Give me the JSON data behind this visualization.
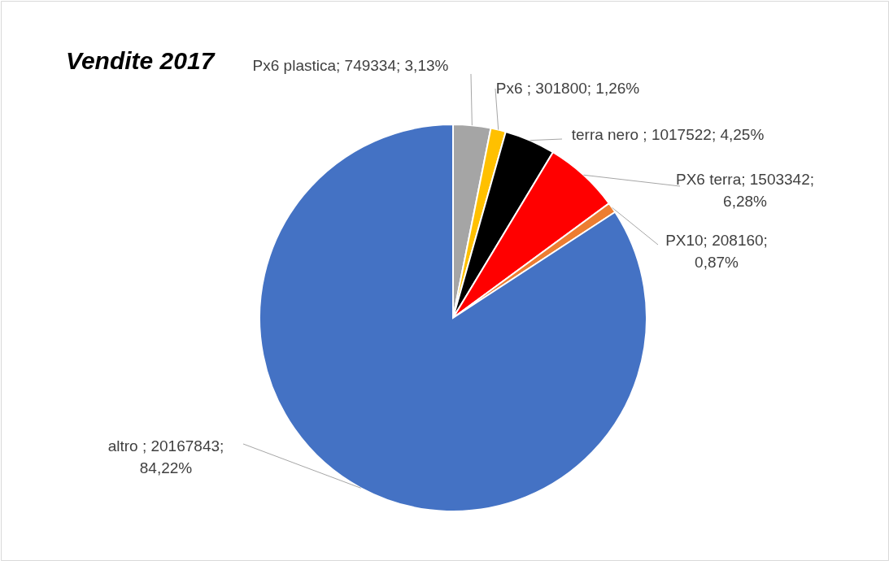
{
  "chart_data": {
    "type": "pie",
    "title": "Vendite 2017",
    "categories": [
      "Px6 plastica",
      "Px6 ",
      "terra nero ",
      "PX6 terra",
      "PX10",
      "altro "
    ],
    "values": [
      749334,
      301800,
      1017522,
      1503342,
      208160,
      20167843
    ],
    "colors": [
      "#a5a5a5",
      "#ffc000",
      "#000000",
      "#ff0000",
      "#ed7d31",
      "#4472c4"
    ],
    "value_labels": [
      "749334; 3,13%",
      "301800; 1,26%",
      "1017522; 4,25%",
      "1503342; 6,28%",
      "208160; 0,87%",
      "20167843; 84,22%"
    ]
  }
}
